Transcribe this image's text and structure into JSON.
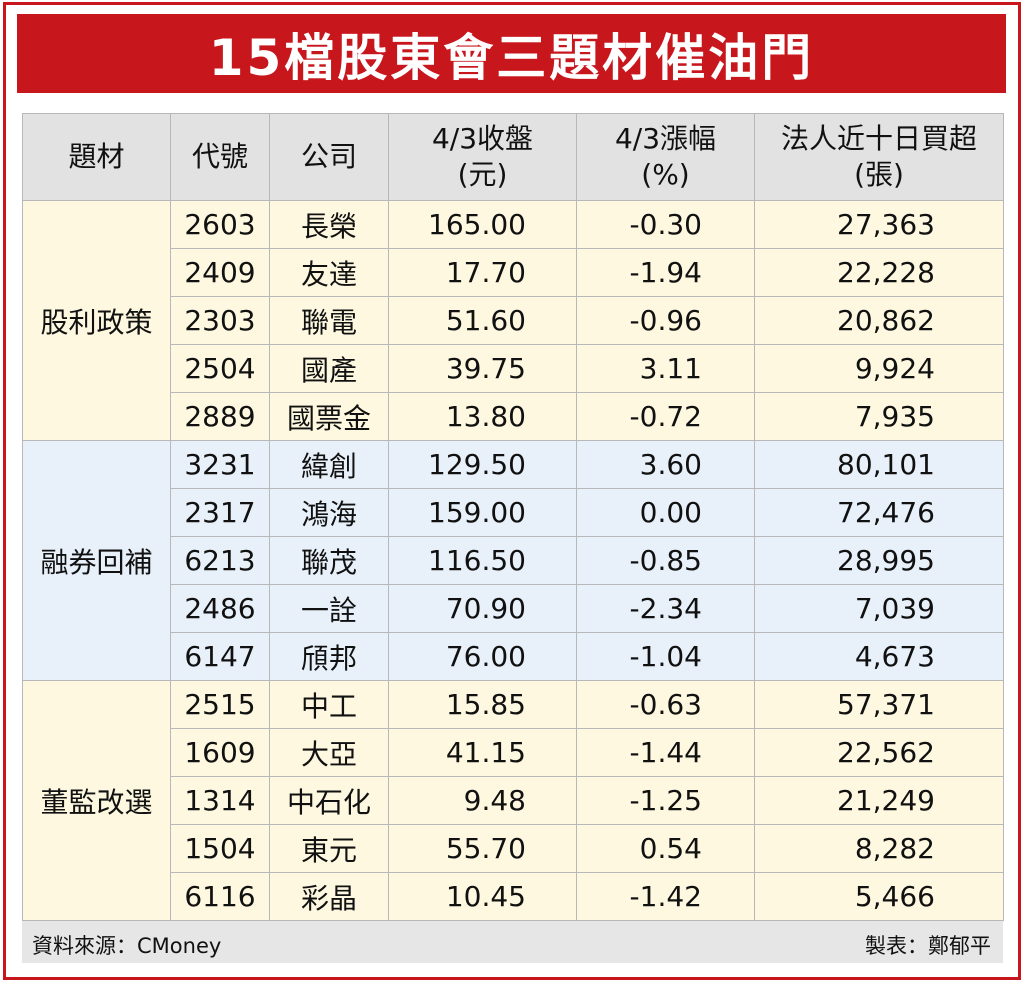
{
  "title": "15檔股東會三題材催油門",
  "headers": {
    "theme": "題材",
    "code": "代號",
    "company": "公司",
    "close_line1": "4/3收盤",
    "close_line2": "(元)",
    "change_line1": "4/3漲幅",
    "change_line2": "(%)",
    "buy_line1": "法人近十日買超",
    "buy_line2": "(張)"
  },
  "groups": [
    {
      "theme": "股利政策",
      "rows": [
        {
          "code": "2603",
          "company": "長榮",
          "close": "165.00",
          "change": "-0.30",
          "buy": "27,363"
        },
        {
          "code": "2409",
          "company": "友達",
          "close": "17.70",
          "change": "-1.94",
          "buy": "22,228"
        },
        {
          "code": "2303",
          "company": "聯電",
          "close": "51.60",
          "change": "-0.96",
          "buy": "20,862"
        },
        {
          "code": "2504",
          "company": "國產",
          "close": "39.75",
          "change": "3.11",
          "buy": "9,924"
        },
        {
          "code": "2889",
          "company": "國票金",
          "close": "13.80",
          "change": "-0.72",
          "buy": "7,935"
        }
      ]
    },
    {
      "theme": "融券回補",
      "rows": [
        {
          "code": "3231",
          "company": "緯創",
          "close": "129.50",
          "change": "3.60",
          "buy": "80,101"
        },
        {
          "code": "2317",
          "company": "鴻海",
          "close": "159.00",
          "change": "0.00",
          "buy": "72,476"
        },
        {
          "code": "6213",
          "company": "聯茂",
          "close": "116.50",
          "change": "-0.85",
          "buy": "28,995"
        },
        {
          "code": "2486",
          "company": "一詮",
          "close": "70.90",
          "change": "-2.34",
          "buy": "7,039"
        },
        {
          "code": "6147",
          "company": "頎邦",
          "close": "76.00",
          "change": "-1.04",
          "buy": "4,673"
        }
      ]
    },
    {
      "theme": "董監改選",
      "rows": [
        {
          "code": "2515",
          "company": "中工",
          "close": "15.85",
          "change": "-0.63",
          "buy": "57,371"
        },
        {
          "code": "1609",
          "company": "大亞",
          "close": "41.15",
          "change": "-1.44",
          "buy": "22,562"
        },
        {
          "code": "1314",
          "company": "中石化",
          "close": "9.48",
          "change": "-1.25",
          "buy": "21,249"
        },
        {
          "code": "1504",
          "company": "東元",
          "close": "55.70",
          "change": "0.54",
          "buy": "8,282"
        },
        {
          "code": "6116",
          "company": "彩晶",
          "close": "10.45",
          "change": "-1.42",
          "buy": "5,466"
        }
      ]
    }
  ],
  "footer": {
    "source": "資料來源：CMoney",
    "maker": "製表：鄭郁平"
  },
  "colors": {
    "title_bg": "#c8161d",
    "group_yellow": "#fdf8df",
    "group_blue": "#e8f1fa",
    "header_bg": "#e2e2e2"
  }
}
